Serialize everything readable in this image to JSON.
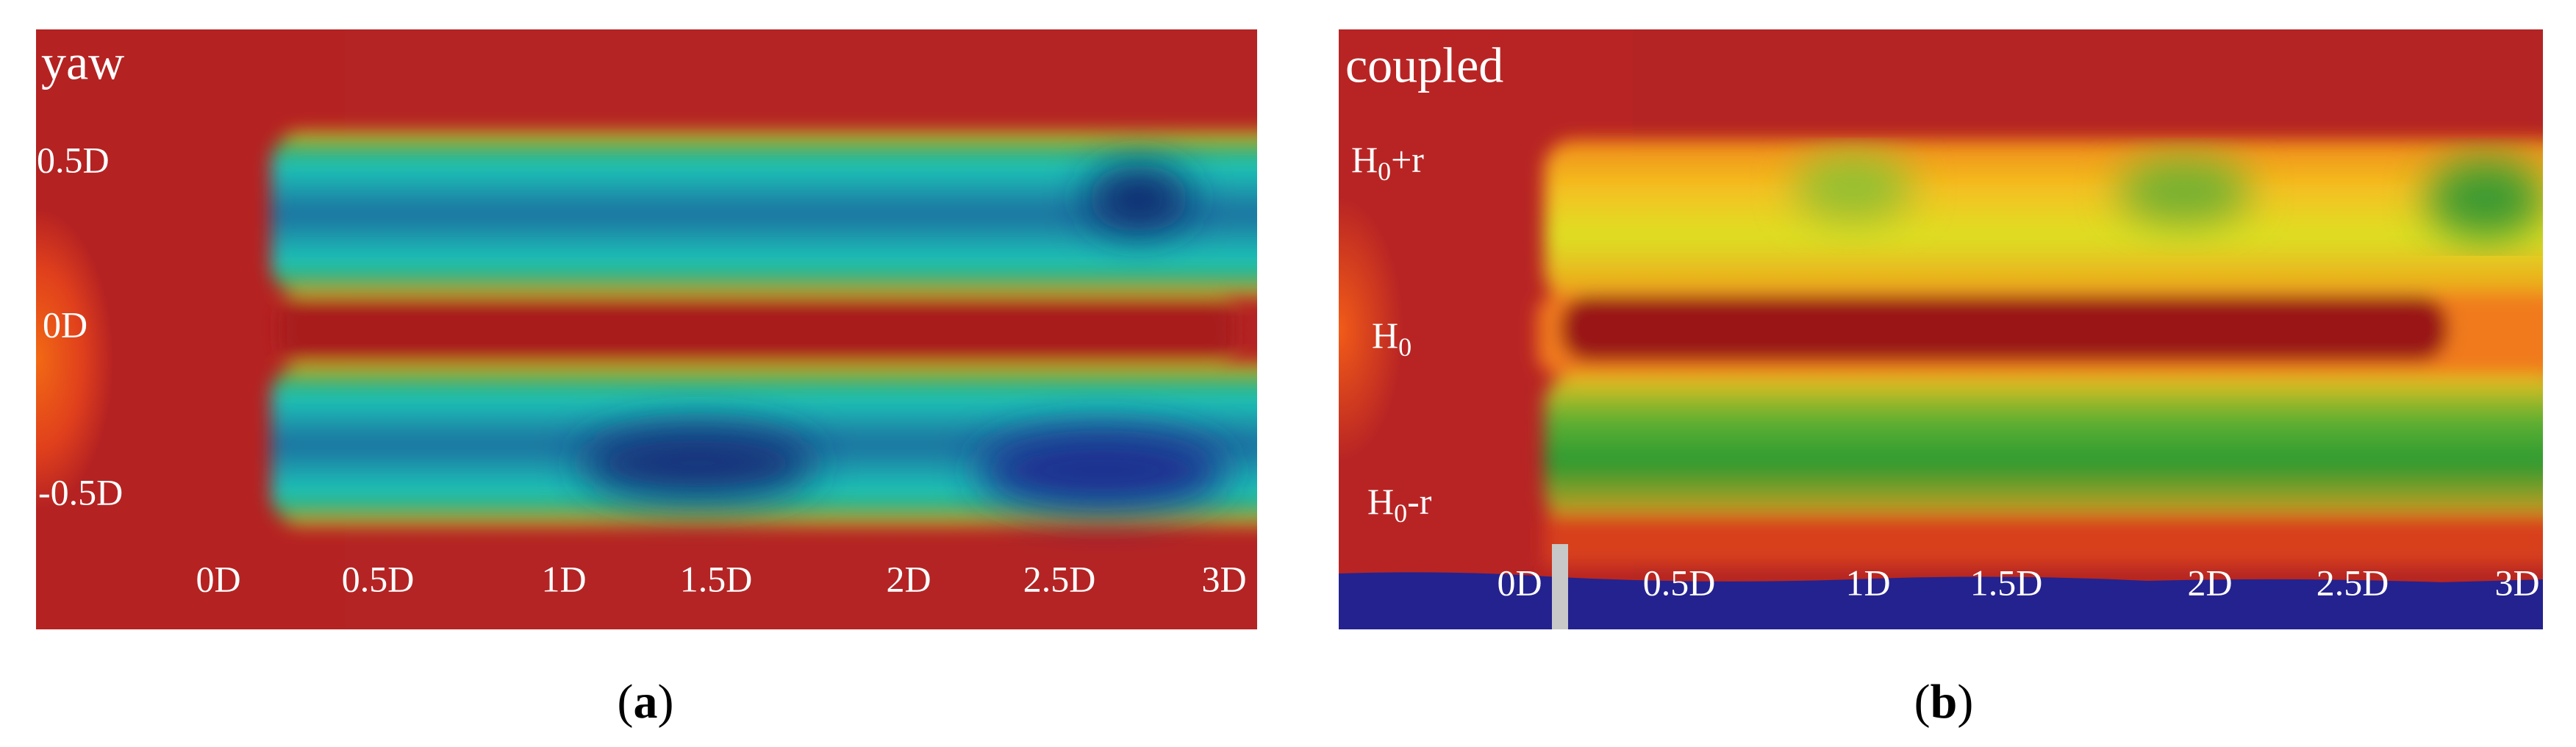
{
  "panels": [
    {
      "caption": {
        "open": "(",
        "letter": "a",
        "close": ")"
      },
      "title": "yaw",
      "y_labels": [
        {
          "text": "0.5D"
        },
        {
          "text": "0D"
        },
        {
          "text": "-0.5D"
        }
      ],
      "x_labels": [
        "0D",
        "0.5D",
        "1D",
        "1.5D",
        "2D",
        "2.5D",
        "3D"
      ]
    },
    {
      "caption": {
        "open": "(",
        "letter": "b",
        "close": ")"
      },
      "title": "coupled",
      "y_labels": [
        {
          "base": "H",
          "sub": "0",
          "rest": "+r"
        },
        {
          "base": "H",
          "sub": "0",
          "rest": ""
        },
        {
          "base": "H",
          "sub": "0",
          "rest": "-r"
        }
      ],
      "x_labels": [
        "0D",
        "0.5D",
        "1D",
        "1.5D",
        "2D",
        "2.5D",
        "3D"
      ]
    }
  ]
}
